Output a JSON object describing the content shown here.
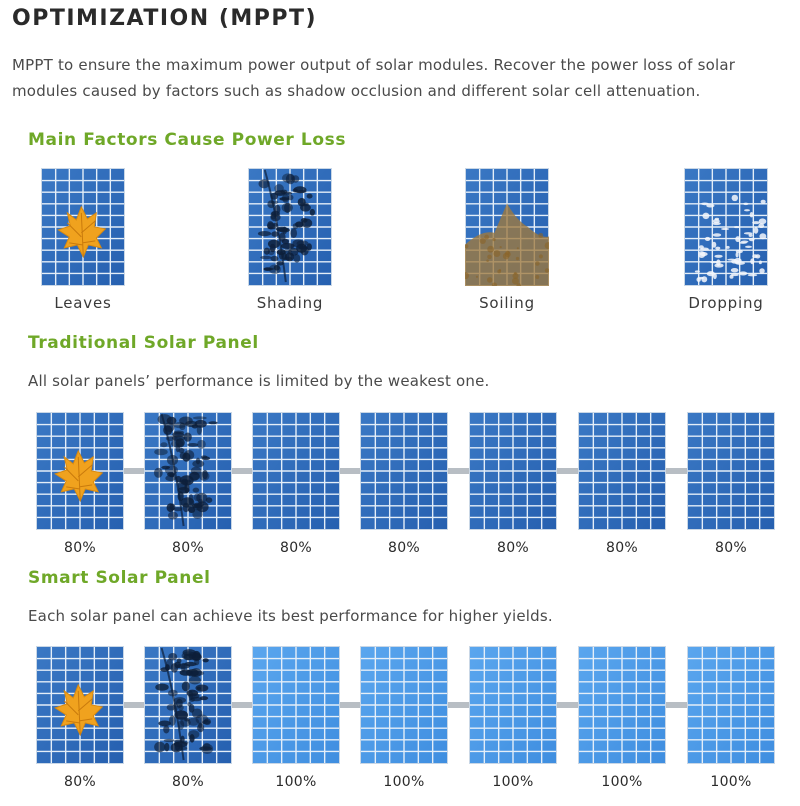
{
  "header": {
    "title": "OPTIMIZATION (MPPT)",
    "intro": "MPPT to ensure the maximum power output of solar modules. Recover the power loss of solar modules caused by factors such as shadow occlusion and different solar cell attenuation."
  },
  "factors": {
    "title": "Main Factors Cause Power Loss",
    "items": [
      {
        "label": "Leaves",
        "icon": "leaf-panel-icon"
      },
      {
        "label": "Shading",
        "icon": "shading-panel-icon"
      },
      {
        "label": "Soiling",
        "icon": "soiling-panel-icon"
      },
      {
        "label": "Dropping",
        "icon": "dropping-panel-icon"
      }
    ]
  },
  "traditional": {
    "title": "Traditional Solar Panel",
    "description": "All solar panels’ performance is limited by the weakest one.",
    "modules": [
      {
        "value": "80%",
        "obstruction": "leaf"
      },
      {
        "value": "80%",
        "obstruction": "shade"
      },
      {
        "value": "80%",
        "obstruction": "none"
      },
      {
        "value": "80%",
        "obstruction": "none"
      },
      {
        "value": "80%",
        "obstruction": "none"
      },
      {
        "value": "80%",
        "obstruction": "none"
      },
      {
        "value": "80%",
        "obstruction": "none"
      }
    ]
  },
  "smart": {
    "title": "Smart Solar Panel",
    "description": "Each solar panel can achieve its best performance for higher yields.",
    "modules": [
      {
        "value": "80%",
        "obstruction": "leaf"
      },
      {
        "value": "80%",
        "obstruction": "shade"
      },
      {
        "value": "100%",
        "obstruction": "none"
      },
      {
        "value": "100%",
        "obstruction": "none"
      },
      {
        "value": "100%",
        "obstruction": "none"
      },
      {
        "value": "100%",
        "obstruction": "none"
      },
      {
        "value": "100%",
        "obstruction": "none"
      }
    ]
  },
  "colors": {
    "accent_green": "#6fa828",
    "panel_blue": "#2660b0",
    "panel_blue_bright": "#3f8ee0",
    "grid_line": "#e4eef8",
    "connector_gray": "#b8bec4",
    "leaf_orange": "#f0a21e"
  }
}
